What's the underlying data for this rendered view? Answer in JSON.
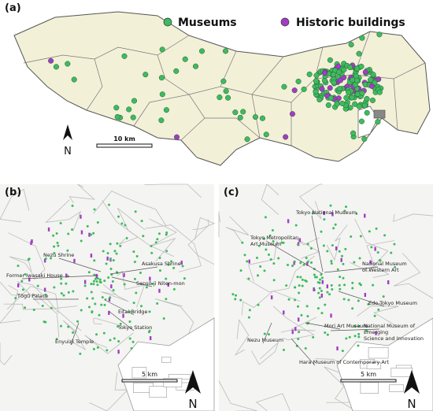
{
  "panel_a": {
    "label": "(a)",
    "legend": [
      {
        "name": "Museums",
        "color": "#3dbb5f"
      },
      {
        "name": "Historic buildings",
        "color": "#a23cc4"
      }
    ],
    "north": "N",
    "scale": "10 km"
  },
  "panel_b": {
    "label": "(b)",
    "north": "N",
    "scale": "5 km",
    "annotations": [
      {
        "lines": [
          "Nezu Shrine"
        ]
      },
      {
        "lines": [
          "Asakusa Shrine"
        ]
      },
      {
        "lines": [
          "Former Iwasaki House"
        ]
      },
      {
        "lines": [
          "Sensō-ji Niten-mon"
        ]
      },
      {
        "lines": [
          "Tōgū Palace"
        ]
      },
      {
        "lines": [
          "Eitai Bridge"
        ]
      },
      {
        "lines": [
          "Tokyo Station"
        ]
      },
      {
        "lines": [
          "Enyuuji Temple"
        ]
      }
    ]
  },
  "panel_c": {
    "label": "(c)",
    "north": "N",
    "scale": "5 km",
    "annotations": [
      {
        "lines": [
          "Tokyo National Museum"
        ]
      },
      {
        "lines": [
          "Tokyo Metropolitan",
          "Art Museum"
        ]
      },
      {
        "lines": [
          "National Museum",
          "of Western Art"
        ]
      },
      {
        "lines": [
          "Edo-Tokyo Museum"
        ]
      },
      {
        "lines": [
          "Mori Art Museum"
        ]
      },
      {
        "lines": [
          "Nezu Museum"
        ]
      },
      {
        "lines": [
          "National Museum of",
          "Emerging",
          "Science and Innovation"
        ]
      },
      {
        "lines": [
          "Hara Museum of Contemporary Art"
        ]
      }
    ]
  }
}
